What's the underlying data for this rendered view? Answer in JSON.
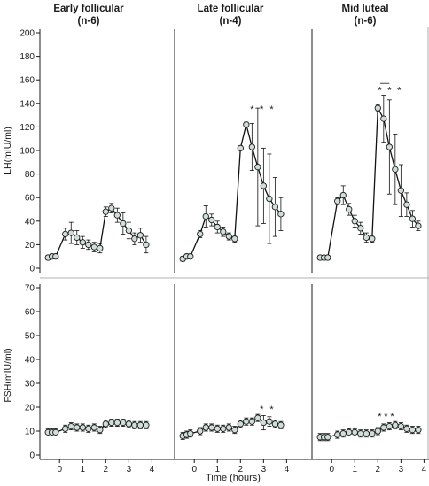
{
  "chart_data": [
    {
      "type": "line",
      "panel": "LH early follicular",
      "title": "Early follicular",
      "subtitle": "(n-6)",
      "xlabel": "",
      "ylabel": "LH(mIU/ml)",
      "xlim": [
        -0.7,
        4.1
      ],
      "ylim": [
        0,
        200
      ],
      "yticks": [
        0,
        20,
        40,
        60,
        80,
        100,
        120,
        140,
        160,
        180,
        200
      ],
      "xticks": [],
      "series": [
        {
          "points": [
            {
              "x": -0.5,
              "y": 9,
              "err": 2
            },
            {
              "x": -0.33,
              "y": 10,
              "err": 2
            },
            {
              "x": -0.17,
              "y": 10,
              "err": 2
            },
            {
              "x": 0.25,
              "y": 29,
              "err": 5
            },
            {
              "x": 0.5,
              "y": 30,
              "err": 9
            },
            {
              "x": 0.75,
              "y": 26,
              "err": 6
            },
            {
              "x": 1.0,
              "y": 22,
              "err": 5
            },
            {
              "x": 1.25,
              "y": 20,
              "err": 4
            },
            {
              "x": 1.5,
              "y": 18,
              "err": 4
            },
            {
              "x": 1.75,
              "y": 17,
              "err": 4
            },
            {
              "x": 2.0,
              "y": 48,
              "err": 4
            },
            {
              "x": 2.25,
              "y": 51,
              "err": 4
            },
            {
              "x": 2.5,
              "y": 45,
              "err": 6
            },
            {
              "x": 2.75,
              "y": 38,
              "err": 9
            },
            {
              "x": 3.0,
              "y": 32,
              "err": 7
            },
            {
              "x": 3.25,
              "y": 25,
              "err": 5
            },
            {
              "x": 3.5,
              "y": 28,
              "err": 6
            },
            {
              "x": 3.75,
              "y": 20,
              "err": 7
            }
          ]
        }
      ],
      "annotations": []
    },
    {
      "type": "line",
      "panel": "LH late follicular",
      "title": "Late follicular",
      "subtitle": "(n-4)",
      "xlim": [
        -0.7,
        4.1
      ],
      "ylim": [
        0,
        200
      ],
      "series": [
        {
          "points": [
            {
              "x": -0.5,
              "y": 8,
              "err": 2
            },
            {
              "x": -0.33,
              "y": 10,
              "err": 2
            },
            {
              "x": -0.17,
              "y": 10,
              "err": 2
            },
            {
              "x": 0.25,
              "y": 29,
              "err": 3
            },
            {
              "x": 0.5,
              "y": 44,
              "err": 9
            },
            {
              "x": 0.75,
              "y": 41,
              "err": 5
            },
            {
              "x": 1.0,
              "y": 35,
              "err": 5
            },
            {
              "x": 1.25,
              "y": 31,
              "err": 4
            },
            {
              "x": 1.5,
              "y": 27,
              "err": 3
            },
            {
              "x": 1.75,
              "y": 25,
              "err": 3
            },
            {
              "x": 2.0,
              "y": 102,
              "err": 2
            },
            {
              "x": 2.25,
              "y": 122,
              "err": 2
            },
            {
              "x": 2.5,
              "y": 103,
              "err": 20
            },
            {
              "x": 2.75,
              "y": 86,
              "err": 50
            },
            {
              "x": 3.0,
              "y": 70,
              "err": 32
            },
            {
              "x": 3.25,
              "y": 59,
              "err": 38
            },
            {
              "x": 3.5,
              "y": 52,
              "err": 25
            },
            {
              "x": 3.75,
              "y": 46,
              "err": 14
            }
          ]
        }
      ],
      "annotations": [
        {
          "text": "*",
          "x": 2.5,
          "y": 137
        },
        {
          "text": "*",
          "x": 2.92,
          "y": 137
        },
        {
          "text": "*",
          "x": 3.35,
          "y": 137
        }
      ]
    },
    {
      "type": "line",
      "panel": "LH mid luteal",
      "title": "Mid luteal",
      "subtitle": "(n-6)",
      "xlim": [
        -0.7,
        4.1
      ],
      "ylim": [
        0,
        200
      ],
      "series": [
        {
          "points": [
            {
              "x": -0.5,
              "y": 9,
              "err": 2
            },
            {
              "x": -0.33,
              "y": 9,
              "err": 2
            },
            {
              "x": -0.17,
              "y": 9,
              "err": 2
            },
            {
              "x": 0.25,
              "y": 57,
              "err": 3
            },
            {
              "x": 0.5,
              "y": 62,
              "err": 8
            },
            {
              "x": 0.75,
              "y": 50,
              "err": 5
            },
            {
              "x": 1.0,
              "y": 40,
              "err": 5
            },
            {
              "x": 1.25,
              "y": 34,
              "err": 5
            },
            {
              "x": 1.5,
              "y": 26,
              "err": 4
            },
            {
              "x": 1.75,
              "y": 25,
              "err": 3
            },
            {
              "x": 2.0,
              "y": 136,
              "err": 3
            },
            {
              "x": 2.25,
              "y": 127,
              "err": 20
            },
            {
              "x": 2.5,
              "y": 103,
              "err": 40
            },
            {
              "x": 2.75,
              "y": 84,
              "err": 30
            },
            {
              "x": 3.0,
              "y": 66,
              "err": 22
            },
            {
              "x": 3.25,
              "y": 54,
              "err": 10
            },
            {
              "x": 3.5,
              "y": 42,
              "err": 7
            },
            {
              "x": 3.75,
              "y": 36,
              "err": 4
            }
          ]
        }
      ],
      "annotations": [
        {
          "text": "*",
          "x": 2.08,
          "y": 153
        },
        {
          "text": "*",
          "x": 2.5,
          "y": 153
        },
        {
          "text": "*",
          "x": 2.92,
          "y": 153
        }
      ]
    },
    {
      "type": "line",
      "panel": "FSH early follicular",
      "ylabel": "FSH(mIU/ml)",
      "xlim": [
        -0.7,
        4.1
      ],
      "ylim": [
        0,
        70
      ],
      "yticks": [
        0,
        10,
        20,
        30,
        40,
        50,
        60,
        70
      ],
      "xticks": [
        0,
        1,
        2,
        3,
        4
      ],
      "series": [
        {
          "points": [
            {
              "x": -0.5,
              "y": 9.5,
              "err": 1.5
            },
            {
              "x": -0.33,
              "y": 9.5,
              "err": 1.5
            },
            {
              "x": -0.17,
              "y": 9.5,
              "err": 1.5
            },
            {
              "x": 0.25,
              "y": 11,
              "err": 1.5
            },
            {
              "x": 0.5,
              "y": 12,
              "err": 1.5
            },
            {
              "x": 0.75,
              "y": 11.5,
              "err": 1.5
            },
            {
              "x": 1.0,
              "y": 11.5,
              "err": 1.5
            },
            {
              "x": 1.25,
              "y": 11,
              "err": 1.5
            },
            {
              "x": 1.5,
              "y": 11.5,
              "err": 1.5
            },
            {
              "x": 1.75,
              "y": 10.5,
              "err": 1.5
            },
            {
              "x": 2.0,
              "y": 13,
              "err": 1.5
            },
            {
              "x": 2.25,
              "y": 13.5,
              "err": 1.5
            },
            {
              "x": 2.5,
              "y": 13.5,
              "err": 1.5
            },
            {
              "x": 2.75,
              "y": 13.5,
              "err": 1.5
            },
            {
              "x": 3.0,
              "y": 13,
              "err": 1.5
            },
            {
              "x": 3.25,
              "y": 12.5,
              "err": 1.5
            },
            {
              "x": 3.5,
              "y": 12.5,
              "err": 1.5
            },
            {
              "x": 3.75,
              "y": 12.5,
              "err": 1.5
            }
          ]
        }
      ],
      "annotations": []
    },
    {
      "type": "line",
      "panel": "FSH late follicular",
      "xlim": [
        -0.7,
        4.1
      ],
      "ylim": [
        0,
        70
      ],
      "xticks": [
        0,
        1,
        2,
        3,
        4
      ],
      "series": [
        {
          "points": [
            {
              "x": -0.5,
              "y": 8,
              "err": 1.5
            },
            {
              "x": -0.33,
              "y": 8.5,
              "err": 1.5
            },
            {
              "x": -0.17,
              "y": 9,
              "err": 1.5
            },
            {
              "x": 0.25,
              "y": 10,
              "err": 1.5
            },
            {
              "x": 0.5,
              "y": 11.5,
              "err": 1.5
            },
            {
              "x": 0.75,
              "y": 11.5,
              "err": 1.5
            },
            {
              "x": 1.0,
              "y": 11,
              "err": 1.5
            },
            {
              "x": 1.25,
              "y": 11,
              "err": 1.5
            },
            {
              "x": 1.5,
              "y": 11.5,
              "err": 1.5
            },
            {
              "x": 1.75,
              "y": 10.5,
              "err": 1.5
            },
            {
              "x": 2.0,
              "y": 13,
              "err": 1.5
            },
            {
              "x": 2.25,
              "y": 14,
              "err": 1.5
            },
            {
              "x": 2.5,
              "y": 14,
              "err": 1.5
            },
            {
              "x": 2.75,
              "y": 15.5,
              "err": 1.5
            },
            {
              "x": 3.0,
              "y": 13.5,
              "err": 3
            },
            {
              "x": 3.25,
              "y": 14,
              "err": 2
            },
            {
              "x": 3.5,
              "y": 13,
              "err": 1.5
            },
            {
              "x": 3.75,
              "y": 12.5,
              "err": 1.5
            }
          ]
        }
      ],
      "annotations": [
        {
          "text": "*",
          "x": 2.92,
          "y": 20
        },
        {
          "text": "*",
          "x": 3.35,
          "y": 20
        }
      ]
    },
    {
      "type": "line",
      "panel": "FSH mid luteal",
      "xlim": [
        -0.7,
        4.1
      ],
      "ylim": [
        0,
        70
      ],
      "xticks": [
        0,
        1,
        2,
        3,
        4
      ],
      "series": [
        {
          "points": [
            {
              "x": -0.5,
              "y": 7.5,
              "err": 1.5
            },
            {
              "x": -0.33,
              "y": 7.5,
              "err": 1.5
            },
            {
              "x": -0.17,
              "y": 7.5,
              "err": 1.5
            },
            {
              "x": 0.25,
              "y": 8.5,
              "err": 1.5
            },
            {
              "x": 0.5,
              "y": 9,
              "err": 1.5
            },
            {
              "x": 0.75,
              "y": 9.5,
              "err": 1.5
            },
            {
              "x": 1.0,
              "y": 9.5,
              "err": 1.5
            },
            {
              "x": 1.25,
              "y": 9,
              "err": 1.5
            },
            {
              "x": 1.5,
              "y": 9,
              "err": 1.5
            },
            {
              "x": 1.75,
              "y": 9,
              "err": 1.5
            },
            {
              "x": 2.0,
              "y": 10,
              "err": 1.5
            },
            {
              "x": 2.25,
              "y": 11.5,
              "err": 1.5
            },
            {
              "x": 2.5,
              "y": 12,
              "err": 1.5
            },
            {
              "x": 2.75,
              "y": 12.5,
              "err": 1.5
            },
            {
              "x": 3.0,
              "y": 12,
              "err": 1.5
            },
            {
              "x": 3.25,
              "y": 11,
              "err": 1.5
            },
            {
              "x": 3.5,
              "y": 10.5,
              "err": 1.5
            },
            {
              "x": 3.75,
              "y": 10.5,
              "err": 1.5
            }
          ]
        }
      ],
      "annotations": [
        {
          "text": "*",
          "x": 2.08,
          "y": 17
        },
        {
          "text": "*",
          "x": 2.35,
          "y": 17
        },
        {
          "text": "*",
          "x": 2.62,
          "y": 17
        }
      ]
    }
  ],
  "shared": {
    "xlabel": "Time (hours)",
    "xtick_labels": [
      "0",
      "1",
      "2",
      "3",
      "4"
    ],
    "colors": {
      "axis": "#1a1a1a",
      "line": "#111111",
      "marker_fill": "#cfdedb",
      "marker_stroke": "#1a1a1a",
      "panel_border": "#9a9a9a",
      "text": "#1a1a1a"
    }
  }
}
